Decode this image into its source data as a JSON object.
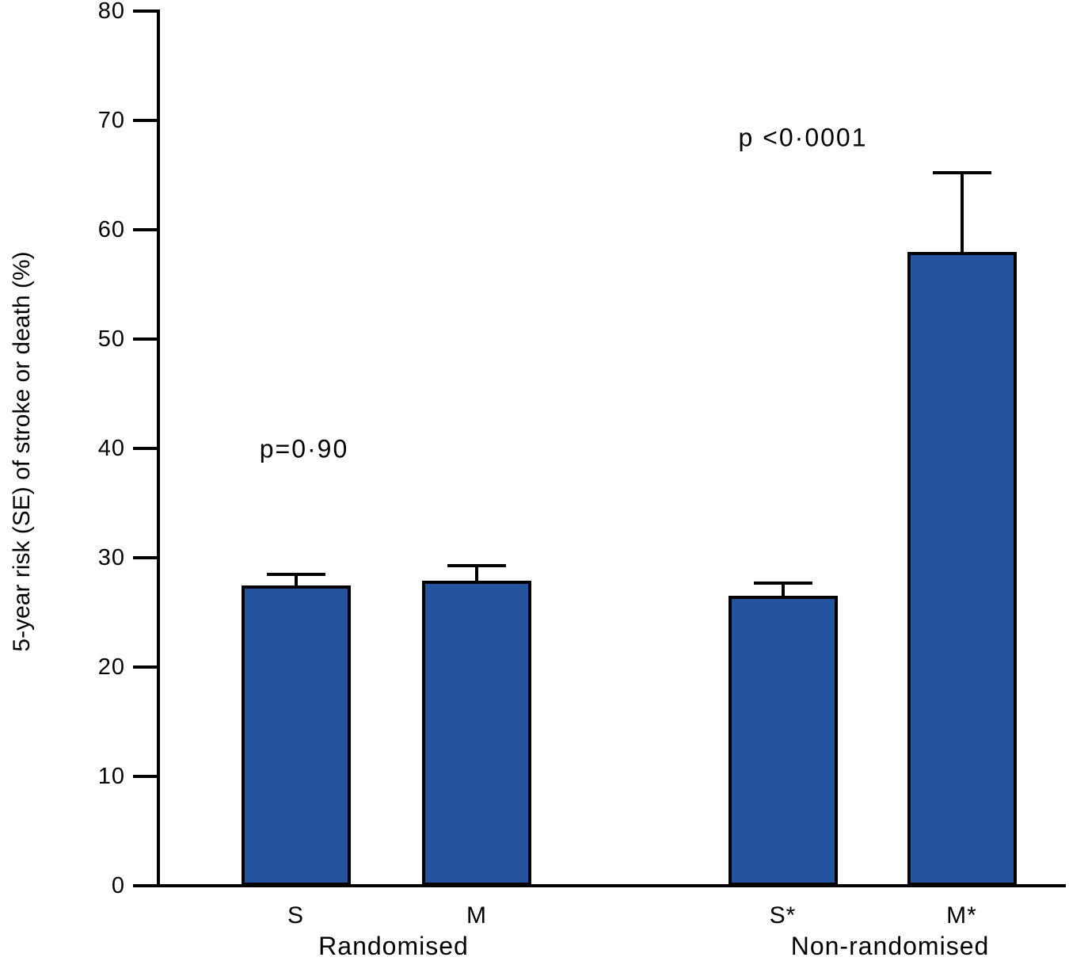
{
  "chart_data": {
    "type": "bar",
    "title": "",
    "xlabel": "",
    "ylabel": "5-year risk (SE) of stroke or death (%)",
    "ylim": [
      0,
      80
    ],
    "yticks": [
      0,
      10,
      20,
      30,
      40,
      50,
      60,
      70,
      80
    ],
    "categories": [
      "S",
      "M",
      "S*",
      "M*"
    ],
    "values": [
      27.5,
      27.9,
      26.5,
      58.0
    ],
    "se_upper": [
      1.0,
      1.4,
      1.2,
      7.2
    ],
    "groups": [
      {
        "label": "Randomised",
        "categories": [
          "S",
          "M"
        ],
        "p_value_label": "p=0·90"
      },
      {
        "label": "Non-randomised",
        "categories": [
          "S*",
          "M*"
        ],
        "p_value_label": "p <0·0001"
      }
    ],
    "bar_color": "#2454A0",
    "bar_border_color": "#000000",
    "axis_color": "#000000",
    "error_bar_style": "upper_cap_only",
    "grid": "off",
    "legend": "none"
  }
}
